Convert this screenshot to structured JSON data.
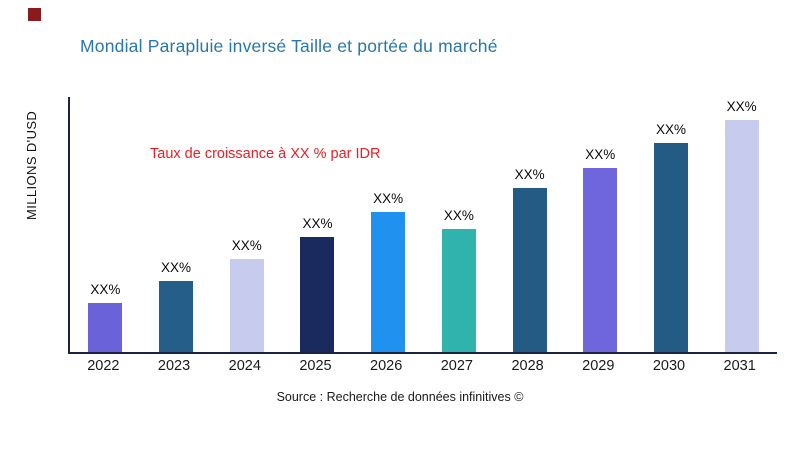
{
  "page": {
    "title": "Mondial Parapluie inversé Taille et portée du marché",
    "y_axis_label": "MILLIONS D'USD",
    "annotation": "Taux de croissance à XX % par IDR",
    "source": "Source : Recherche de données infinitives ©"
  },
  "colors": {
    "title": "#2877AE",
    "annotation": "#ED1C24",
    "axis": "#1B2440",
    "brand_square": "#8B1A1A"
  },
  "chart_data": {
    "type": "bar",
    "title": "Mondial Parapluie inversé Taille et portée du marché",
    "ylabel": "MILLIONS D'USD",
    "xlabel": "",
    "annotation": "Taux de croissance à XX % par IDR",
    "source": "Source : Recherche de données infinitives ©",
    "grid": false,
    "legend": false,
    "categories": [
      "2022",
      "2023",
      "2024",
      "2025",
      "2026",
      "2027",
      "2028",
      "2029",
      "2030",
      "2031"
    ],
    "bar_labels": [
      "XX%",
      "XX%",
      "XX%",
      "XX%",
      "XX%",
      "XX%",
      "XX%",
      "XX%",
      "XX%",
      "XX%"
    ],
    "values_relative": [
      49,
      71,
      93,
      115,
      140,
      123,
      164,
      184,
      209,
      232
    ],
    "value_scale_note": "bar heights in px; no numeric y-axis shown, all data labels are XX% placeholders",
    "bar_colors": [
      "#6A62D8",
      "#265E8A",
      "#C7CCEE",
      "#1A2A5E",
      "#2191F0",
      "#2FB3AC",
      "#245B85",
      "#6F65DC",
      "#245B85",
      "#C7CCEE"
    ]
  }
}
